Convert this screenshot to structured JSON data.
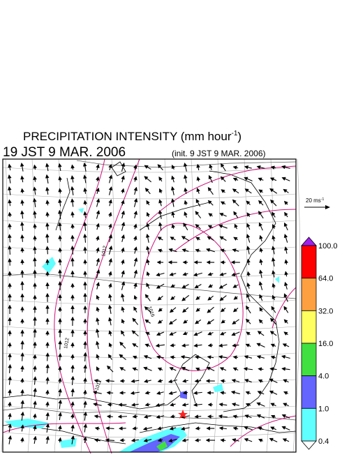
{
  "header": {
    "title": "PRECIPITATION INTENSITY (mm hour",
    "title_exponent": "-1",
    "title_close": ")",
    "valid_time": "19 JST 9 MAR. 2006",
    "init_time": "(init. 9 JST 9 MAR. 2006)"
  },
  "wind_legend": {
    "label": "20 ms",
    "exponent": "-1"
  },
  "contour_labels": [
    "1012",
    "1016",
    "1012",
    "1012"
  ],
  "colorbar": {
    "top_color": "#a020f0",
    "bottom_color": "#ffffff",
    "bounds": [
      "100.0",
      "64.0",
      "32.0",
      "16.0",
      "4.0",
      "1.0",
      "0.4"
    ],
    "colors": [
      "#ff0000",
      "#ffa040",
      "#ffff60",
      "#40e040",
      "#6464ff",
      "#60ffff"
    ]
  }
}
